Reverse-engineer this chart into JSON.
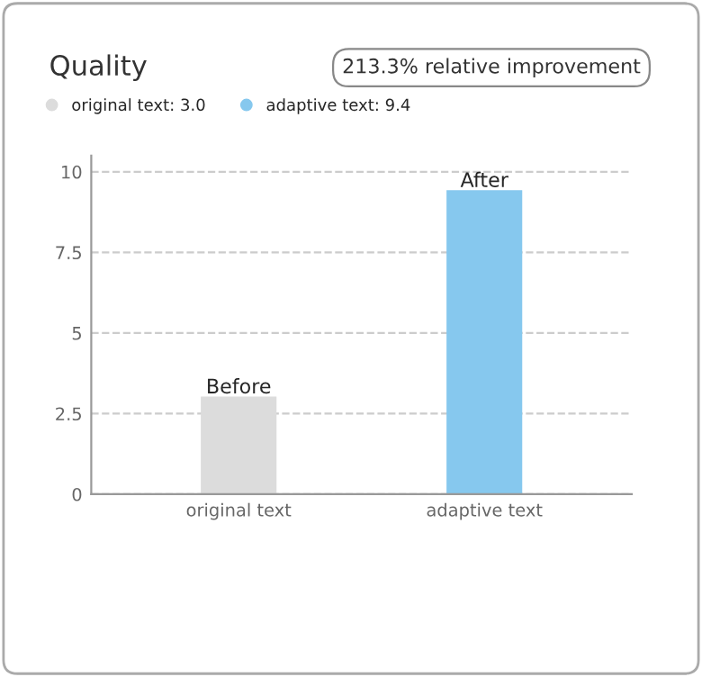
{
  "chart_data": {
    "type": "bar",
    "title": "Quality",
    "annotations": [
      "213.3% relative improvement"
    ],
    "categories": [
      "original text",
      "adaptive text"
    ],
    "series": [
      {
        "name": "original text: 3.0",
        "color": "#dcdcdc",
        "values": [
          3.0,
          null
        ],
        "value_labels": [
          "Before",
          null
        ]
      },
      {
        "name": "adaptive text: 9.4",
        "color": "#86c8ee",
        "values": [
          null,
          9.4
        ],
        "value_labels": [
          null,
          "After"
        ]
      }
    ],
    "ylim": [
      0,
      10.5
    ],
    "yticks": [
      0,
      2.5,
      5,
      7.5,
      10
    ],
    "grid": "y",
    "legend": "top left"
  }
}
